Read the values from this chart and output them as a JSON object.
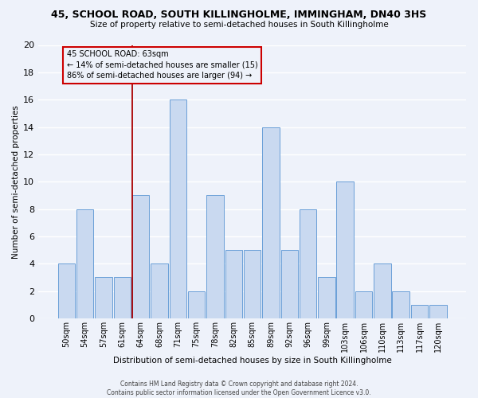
{
  "title": "45, SCHOOL ROAD, SOUTH KILLINGHOLME, IMMINGHAM, DN40 3HS",
  "subtitle": "Size of property relative to semi-detached houses in South Killingholme",
  "xlabel": "Distribution of semi-detached houses by size in South Killingholme",
  "ylabel": "Number of semi-detached properties",
  "footnote": "Contains HM Land Registry data © Crown copyright and database right 2024.\nContains public sector information licensed under the Open Government Licence v3.0.",
  "categories": [
    "50sqm",
    "54sqm",
    "57sqm",
    "61sqm",
    "64sqm",
    "68sqm",
    "71sqm",
    "75sqm",
    "78sqm",
    "82sqm",
    "85sqm",
    "89sqm",
    "92sqm",
    "96sqm",
    "99sqm",
    "103sqm",
    "106sqm",
    "110sqm",
    "113sqm",
    "117sqm",
    "120sqm"
  ],
  "values": [
    4,
    8,
    3,
    3,
    9,
    4,
    16,
    2,
    9,
    5,
    5,
    14,
    5,
    8,
    3,
    10,
    2,
    4,
    2,
    1,
    1
  ],
  "bar_color": "#c9d9f0",
  "bar_edge_color": "#6a9fd8",
  "bg_color": "#eef2fa",
  "grid_color": "#ffffff",
  "marker_index": 4,
  "marker_label": "45 SCHOOL ROAD: 63sqm",
  "marker_smaller_pct": "14%",
  "marker_smaller_n": 15,
  "marker_larger_pct": "86%",
  "marker_larger_n": 94,
  "annotation_box_edge": "#cc0000",
  "marker_line_color": "#aa0000",
  "ylim": [
    0,
    20
  ],
  "yticks": [
    0,
    2,
    4,
    6,
    8,
    10,
    12,
    14,
    16,
    18,
    20
  ]
}
